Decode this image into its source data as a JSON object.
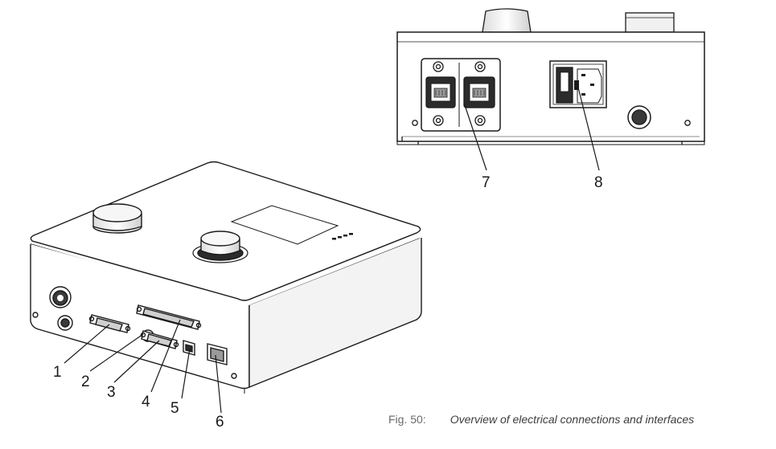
{
  "callouts": [
    {
      "number": "1"
    },
    {
      "number": "2"
    },
    {
      "number": "3"
    },
    {
      "number": "4"
    },
    {
      "number": "5"
    },
    {
      "number": "6"
    },
    {
      "number": "7"
    },
    {
      "number": "8"
    }
  ],
  "caption": {
    "figure_label": "Fig. 50:",
    "text": "Overview of electrical connections and interfaces"
  },
  "colors": {
    "line": "#1a1a1a",
    "top_surface": "#ffffff",
    "side_shade": "#f3f3f3",
    "caption_label": "#6a6a6a"
  }
}
